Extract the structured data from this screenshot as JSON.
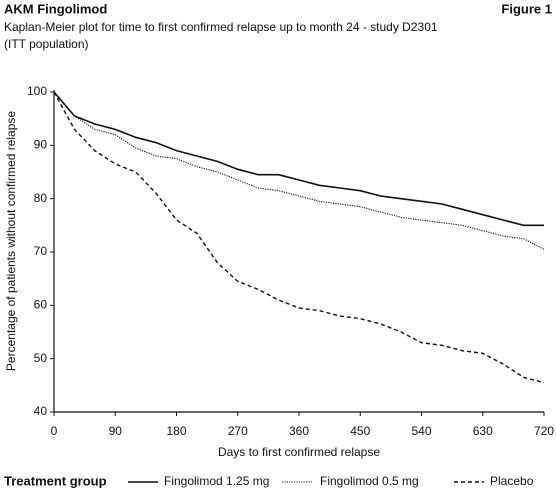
{
  "header": {
    "left": "AKM Fingolimod",
    "right": "Figure 1"
  },
  "chart_data": {
    "type": "line",
    "title": [
      "Kaplan-Meier plot for time to first confirmed relapse up to month 24 - study D2301",
      "(ITT population)"
    ],
    "x_label": "Days to first confirmed relapse",
    "y_label": "Percentage of patients without confirmed relapse",
    "legend_title": "Treatment group",
    "legend": "bottom",
    "grid": false,
    "x": [
      0,
      30,
      60,
      90,
      120,
      150,
      180,
      210,
      240,
      270,
      300,
      330,
      360,
      390,
      420,
      450,
      480,
      510,
      540,
      570,
      600,
      630,
      660,
      690,
      720
    ],
    "series": [
      {
        "name": "Fingolimod 1.25 mg",
        "color": "#111111",
        "style": "solid",
        "values": [
          100,
          95.5,
          94,
          93,
          91.5,
          90.5,
          89,
          88,
          87,
          85.5,
          84.5,
          84.5,
          83.5,
          82.5,
          82,
          81.5,
          80.5,
          80,
          79.5,
          79,
          78,
          77,
          76,
          75,
          75
        ]
      },
      {
        "name": "Fingolimod 0.5 mg",
        "color": "#111111",
        "style": "dotted",
        "values": [
          100,
          95.5,
          93,
          92,
          89.5,
          88,
          87.5,
          86,
          85,
          83.5,
          82,
          81.5,
          80.5,
          79.5,
          79,
          78.5,
          77.5,
          76.5,
          76,
          75.5,
          75,
          74,
          73,
          72.5,
          70.5
        ]
      },
      {
        "name": "Placebo",
        "color": "#111111",
        "style": "dashed",
        "values": [
          100,
          93,
          89,
          86.5,
          85,
          81,
          76,
          73.5,
          68,
          64.5,
          63,
          61,
          59.5,
          59,
          58,
          57.5,
          56.5,
          55,
          53,
          52.5,
          51.5,
          51,
          49,
          46.5,
          45.5
        ]
      }
    ],
    "xlim": [
      0,
      720
    ],
    "xticks": [
      0,
      90,
      180,
      270,
      360,
      450,
      540,
      630,
      720
    ],
    "ylim": [
      40,
      100
    ],
    "yticks": [
      40,
      50,
      60,
      70,
      80,
      90,
      100
    ]
  }
}
